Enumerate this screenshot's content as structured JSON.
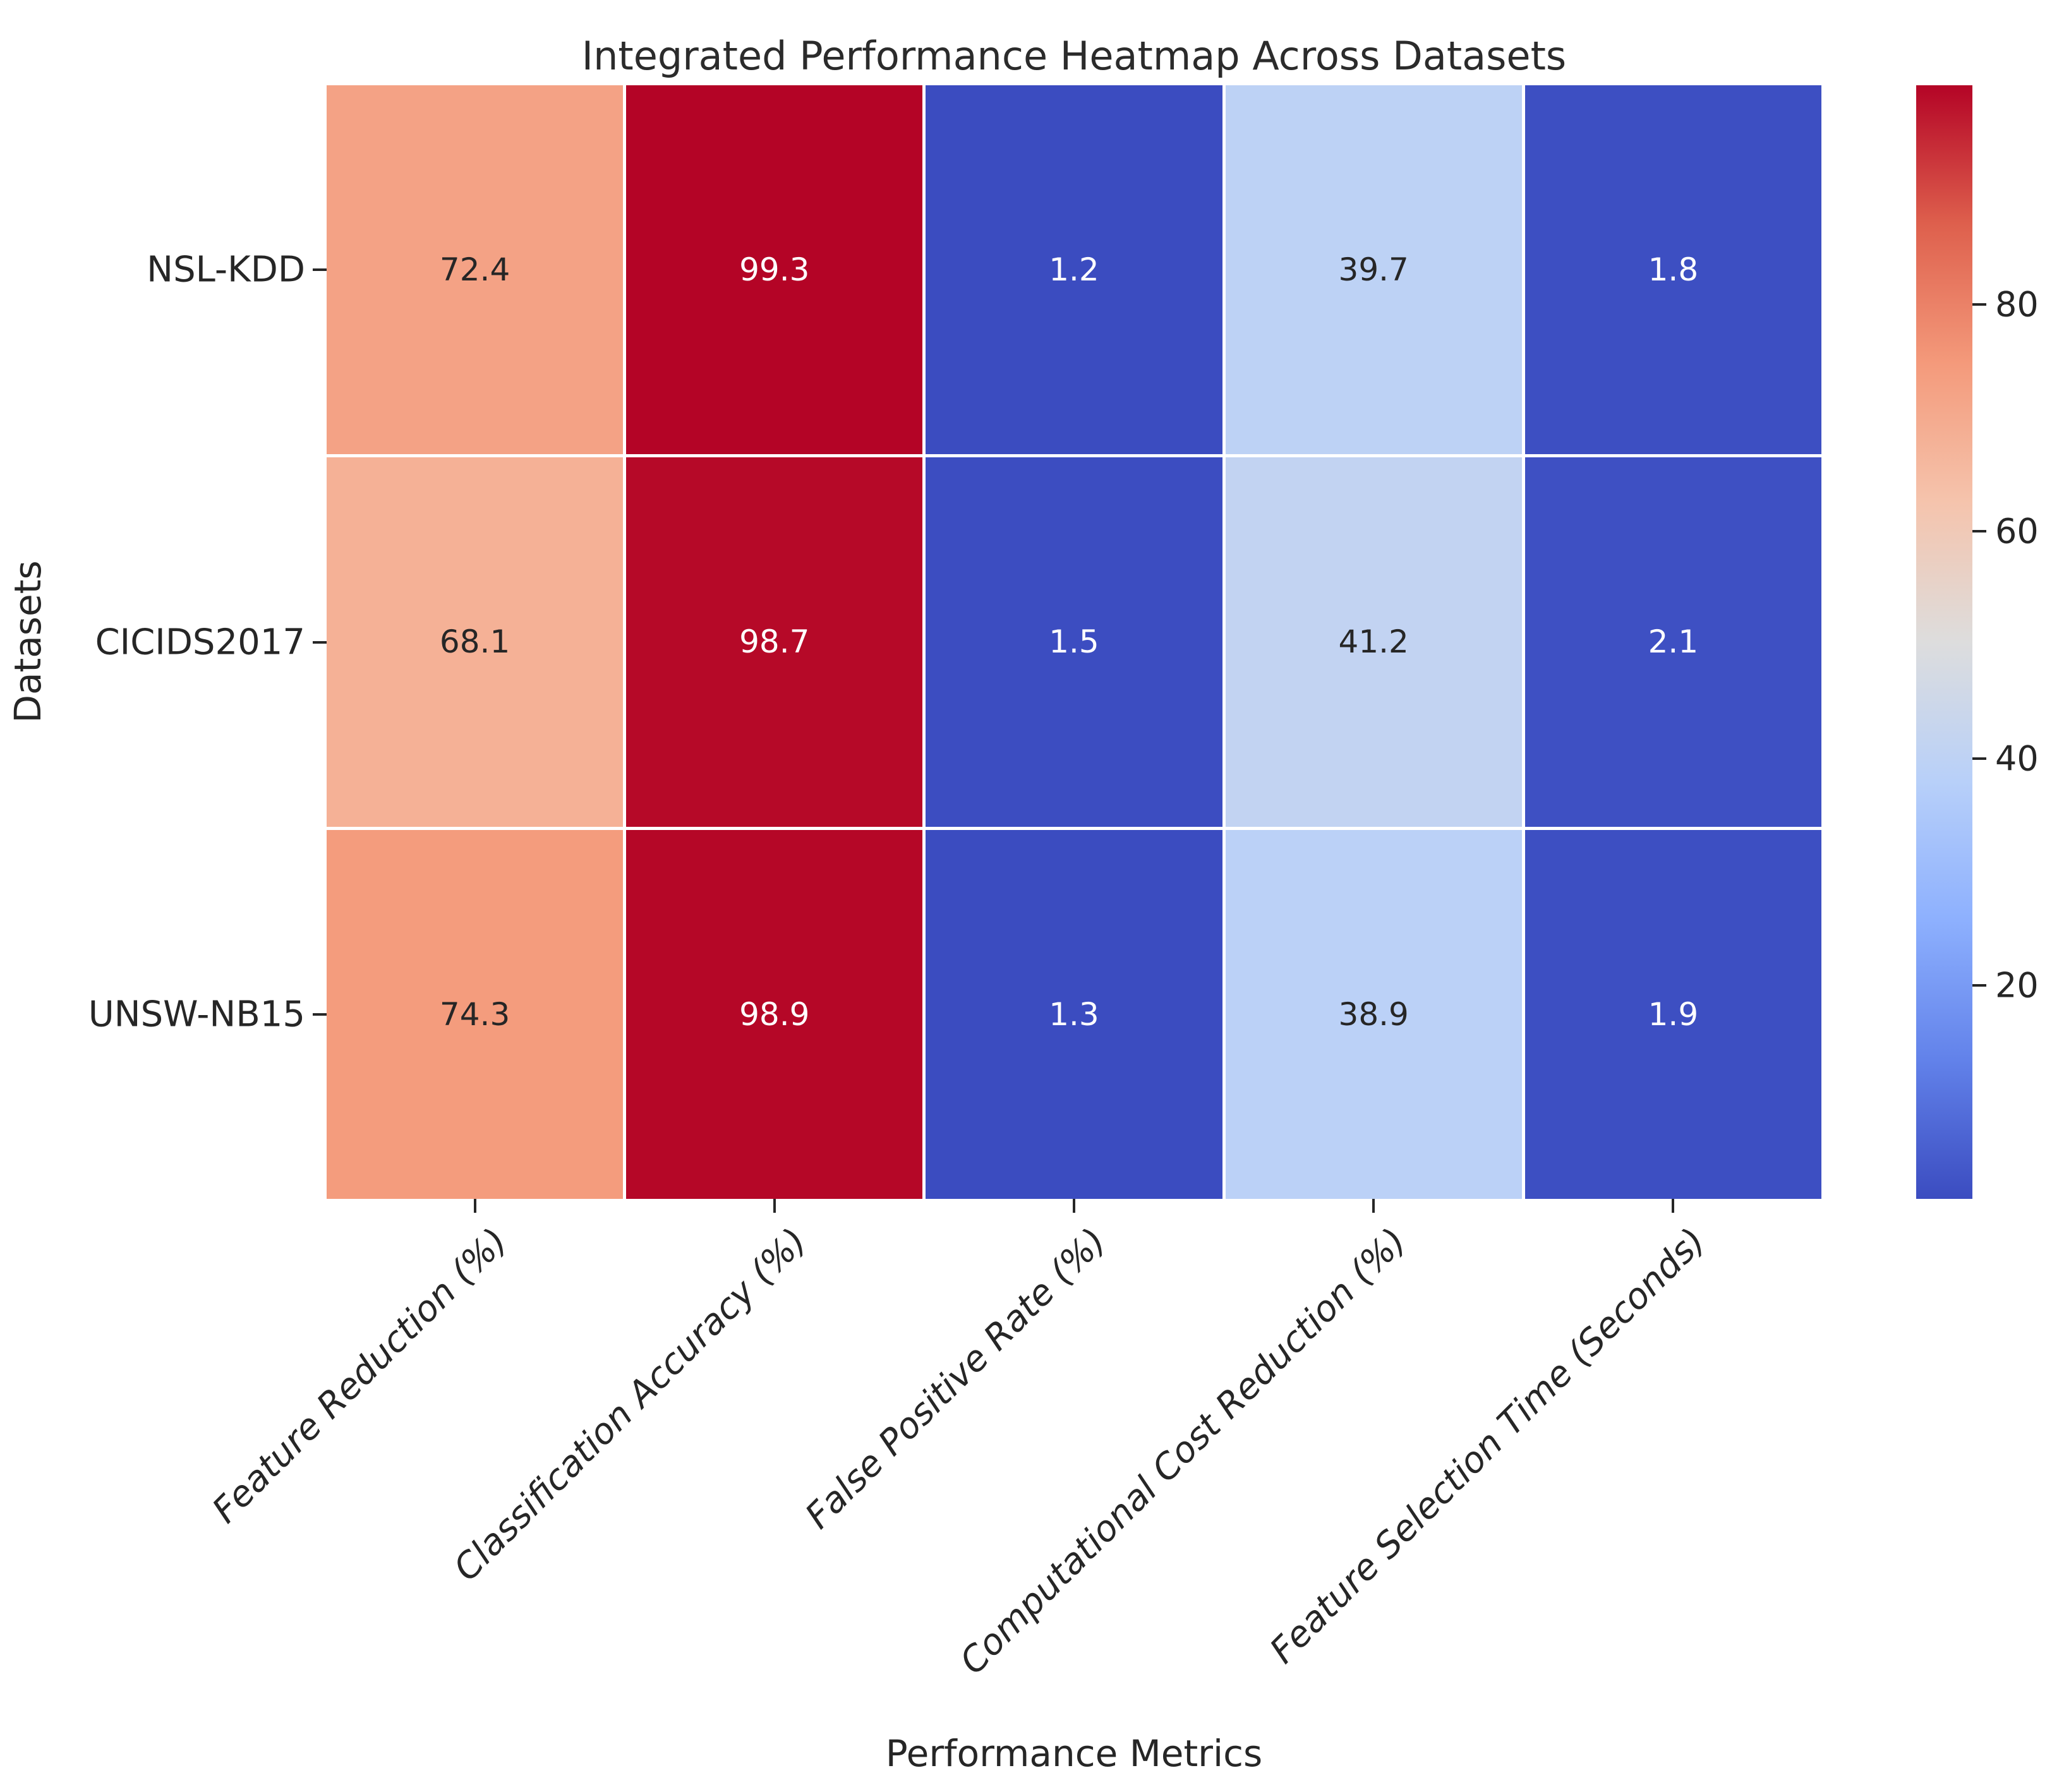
{
  "title": "Integrated Performance Heatmap Across Datasets",
  "x_axis_label": "Performance Metrics",
  "y_axis_label": "Datasets",
  "chart_data": {
    "type": "heatmap",
    "title": "Integrated Performance Heatmap Across Datasets",
    "xlabel": "Performance Metrics",
    "ylabel": "Datasets",
    "rows": [
      "NSL-KDD",
      "CICIDS2017",
      "UNSW-NB15"
    ],
    "columns": [
      "Feature Reduction (%)",
      "Classification Accuracy (%)",
      "False Positive Rate (%)",
      "Computational Cost Reduction (%)",
      "Feature Selection Time (Seconds)"
    ],
    "values": [
      [
        72.4,
        99.3,
        1.2,
        39.7,
        1.8
      ],
      [
        68.1,
        98.7,
        1.5,
        41.2,
        2.1
      ],
      [
        74.3,
        98.9,
        1.3,
        38.9,
        1.9
      ]
    ],
    "value_decimals": 1,
    "vmin": 1.2,
    "vmax": 99.3,
    "colormap": "coolwarm",
    "colormap_stops": [
      "#3B4CC0",
      "#6282EA",
      "#8DB0FE",
      "#B8D0F9",
      "#DDDDDD",
      "#F5C4AD",
      "#F49A7B",
      "#DE604D",
      "#B40426"
    ],
    "colorbar_ticks": [
      20,
      40,
      60,
      80
    ],
    "annotation_color_light_cells": "#262626",
    "annotation_color_dark_cells": "#FFFFFF",
    "grid_line_color": "#FFFFFF",
    "legend_position": "right-colorbar",
    "grid": false
  }
}
